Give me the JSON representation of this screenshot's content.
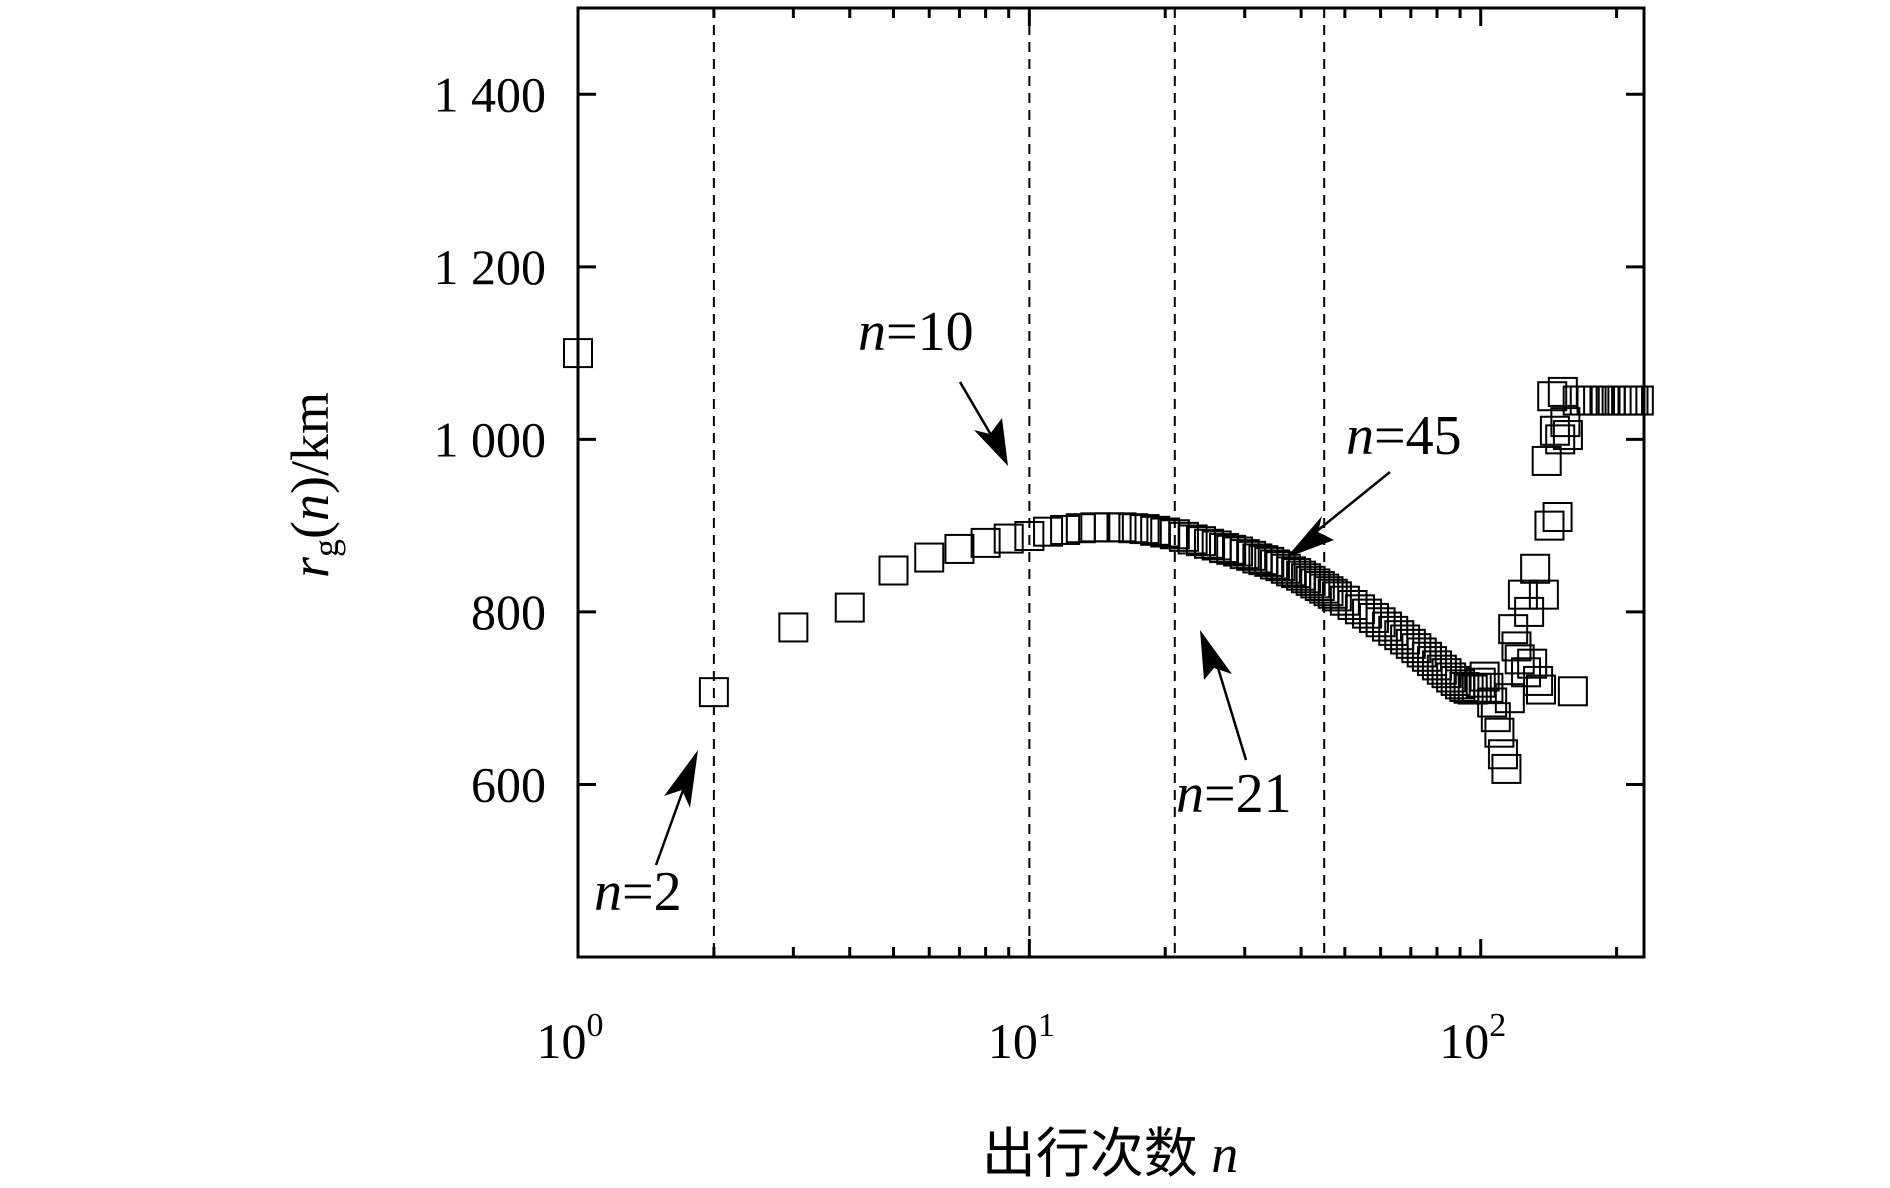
{
  "chart_data": {
    "type": "scatter",
    "xscale": "log",
    "xlim": [
      1,
      230
    ],
    "ylim": [
      400,
      1500
    ],
    "xticks": [
      {
        "value": 1,
        "base": "10",
        "exp": "0"
      },
      {
        "value": 10,
        "base": "10",
        "exp": "1"
      },
      {
        "value": 100,
        "base": "10",
        "exp": "2"
      }
    ],
    "yticks": [
      {
        "value": 600,
        "label": "600"
      },
      {
        "value": 800,
        "label": "800"
      },
      {
        "value": 1000,
        "label": "1 000"
      },
      {
        "value": 1200,
        "label": "1 200"
      },
      {
        "value": 1400,
        "label": "1 400"
      }
    ],
    "xlabel": {
      "text": "出行次数 ",
      "var": "n"
    },
    "ylabel": {
      "r": "r",
      "sub": "g",
      "open": "(",
      "var": "n",
      "close": ")/km"
    },
    "marker": "open-square",
    "grid": false,
    "vlines": [
      2,
      10,
      21,
      45
    ],
    "annotations": [
      {
        "var": "n",
        "text": "=2",
        "points_to": 2
      },
      {
        "var": "n",
        "text": "=10",
        "points_to": 10
      },
      {
        "var": "n",
        "text": "=21",
        "points_to": 21
      },
      {
        "var": "n",
        "text": "=45",
        "points_to": 45
      }
    ],
    "points": [
      [
        1,
        1100
      ],
      [
        2,
        707
      ],
      [
        3,
        782
      ],
      [
        4,
        805
      ],
      [
        5,
        848
      ],
      [
        6,
        863
      ],
      [
        7,
        873
      ],
      [
        8,
        880
      ],
      [
        9,
        885
      ],
      [
        10,
        888
      ],
      [
        11,
        893
      ],
      [
        12,
        895
      ],
      [
        13,
        897
      ],
      [
        14,
        898
      ],
      [
        15,
        898
      ],
      [
        16,
        898
      ],
      [
        17,
        897
      ],
      [
        18,
        896
      ],
      [
        19,
        894
      ],
      [
        20,
        892
      ],
      [
        21,
        890
      ],
      [
        22,
        887
      ],
      [
        23,
        884
      ],
      [
        24,
        882
      ],
      [
        25,
        879
      ],
      [
        26,
        877
      ],
      [
        27,
        874
      ],
      [
        28,
        872
      ],
      [
        29,
        870
      ],
      [
        30,
        867
      ],
      [
        31,
        865
      ],
      [
        32,
        862
      ],
      [
        33,
        860
      ],
      [
        34,
        858
      ],
      [
        35,
        855
      ],
      [
        36,
        853
      ],
      [
        37,
        850
      ],
      [
        38,
        847
      ],
      [
        39,
        845
      ],
      [
        40,
        842
      ],
      [
        41,
        839
      ],
      [
        42,
        836
      ],
      [
        43,
        833
      ],
      [
        44,
        830
      ],
      [
        45,
        827
      ],
      [
        46,
        824
      ],
      [
        47,
        821
      ],
      [
        48,
        818
      ],
      [
        50,
        813
      ],
      [
        52,
        808
      ],
      [
        54,
        803
      ],
      [
        56,
        798
      ],
      [
        58,
        793
      ],
      [
        60,
        788
      ],
      [
        62,
        783
      ],
      [
        64,
        778
      ],
      [
        66,
        773
      ],
      [
        68,
        768
      ],
      [
        70,
        763
      ],
      [
        72,
        758
      ],
      [
        74,
        753
      ],
      [
        76,
        748
      ],
      [
        78,
        743
      ],
      [
        80,
        738
      ],
      [
        82,
        733
      ],
      [
        84,
        729
      ],
      [
        86,
        724
      ],
      [
        88,
        720
      ],
      [
        90,
        716
      ],
      [
        92,
        713
      ],
      [
        94,
        711
      ],
      [
        96,
        710
      ],
      [
        98,
        712
      ],
      [
        100,
        718
      ],
      [
        102,
        725
      ],
      [
        104,
        712
      ],
      [
        106,
        695
      ],
      [
        108,
        678
      ],
      [
        110,
        660
      ],
      [
        112,
        635
      ],
      [
        114,
        618
      ],
      [
        116,
        700
      ],
      [
        118,
        780
      ],
      [
        120,
        760
      ],
      [
        122,
        745
      ],
      [
        124,
        820
      ],
      [
        126,
        730
      ],
      [
        128,
        800
      ],
      [
        130,
        740
      ],
      [
        132,
        850
      ],
      [
        134,
        720
      ],
      [
        136,
        710
      ],
      [
        138,
        820
      ],
      [
        140,
        975
      ],
      [
        142,
        900
      ],
      [
        144,
        1050
      ],
      [
        146,
        1010
      ],
      [
        148,
        910
      ],
      [
        150,
        1000
      ],
      [
        152,
        1055
      ],
      [
        154,
        1020
      ],
      [
        156,
        1005
      ],
      [
        160,
        708
      ],
      [
        164,
        1045
      ],
      [
        170,
        1045
      ],
      [
        176,
        1045
      ],
      [
        182,
        1045
      ],
      [
        188,
        1045
      ],
      [
        194,
        1045
      ],
      [
        200,
        1045
      ],
      [
        206,
        1045
      ],
      [
        212,
        1045
      ],
      [
        218,
        1045
      ],
      [
        224,
        1045
      ]
    ]
  }
}
